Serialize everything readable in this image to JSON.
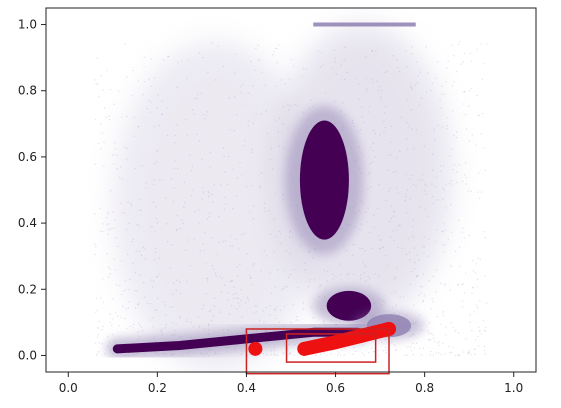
{
  "chart_data": {
    "type": "scatter",
    "title": "",
    "xlabel": "",
    "ylabel": "",
    "xlim": [
      -0.05,
      1.05
    ],
    "ylim": [
      -0.05,
      1.05
    ],
    "x_ticks": [
      0.0,
      0.2,
      0.4,
      0.6,
      0.8,
      1.0
    ],
    "y_ticks": [
      0.0,
      0.2,
      0.4,
      0.6,
      0.8,
      1.0
    ],
    "x_tick_labels": [
      "0.0",
      "0.2",
      "0.4",
      "0.6",
      "0.8",
      "1.0"
    ],
    "y_tick_labels": [
      "0.0",
      "0.2",
      "0.4",
      "0.6",
      "0.8",
      "1.0"
    ],
    "grid": false,
    "colors": {
      "density_low": "#c9c3da",
      "density_mid": "#8e7fb0",
      "density_high": "#440154",
      "highlight": "#ee1111",
      "box_outline": "#cc2222"
    },
    "density_regions": [
      {
        "name": "upper-ellipse",
        "cx": 0.575,
        "cy": 0.53,
        "rx": 0.055,
        "ry": 0.18,
        "density": "high"
      },
      {
        "name": "lower-left-band",
        "points": [
          [
            0.11,
            0.02
          ],
          [
            0.25,
            0.03
          ],
          [
            0.4,
            0.05
          ],
          [
            0.55,
            0.07
          ],
          [
            0.65,
            0.07
          ]
        ],
        "density": "high"
      },
      {
        "name": "mid-blob",
        "cx": 0.63,
        "cy": 0.15,
        "rx": 0.05,
        "ry": 0.045,
        "density": "high"
      },
      {
        "name": "right-lower",
        "cx": 0.72,
        "cy": 0.09,
        "rx": 0.05,
        "ry": 0.035,
        "density": "mid"
      },
      {
        "name": "top-band",
        "x0": 0.55,
        "x1": 0.78,
        "y": 1.0,
        "density": "mid"
      }
    ],
    "highlight_points": [
      {
        "x": 0.42,
        "y": 0.02
      },
      {
        "x": 0.53,
        "y": 0.02
      },
      {
        "x": 0.6,
        "y": 0.04
      },
      {
        "x": 0.66,
        "y": 0.06
      },
      {
        "x": 0.72,
        "y": 0.08
      }
    ],
    "boxes": [
      {
        "x0": 0.4,
        "x1": 0.72,
        "y0": -0.055,
        "y1": 0.08
      },
      {
        "x0": 0.49,
        "x1": 0.69,
        "y0": -0.02,
        "y1": 0.065
      }
    ]
  }
}
